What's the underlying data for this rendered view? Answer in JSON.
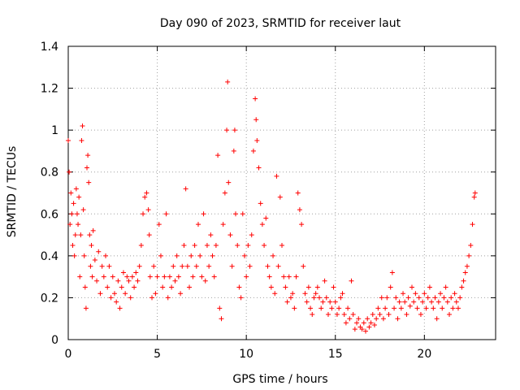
{
  "chart_data": {
    "type": "scatter",
    "title": "Day 090 of 2023, SRMTID for receiver laut",
    "xlabel": "GPS time / hours",
    "ylabel": "SRMTID / TECUs",
    "xlim": [
      0,
      24
    ],
    "ylim": [
      0,
      1.4
    ],
    "xticks": [
      0,
      5,
      10,
      15,
      20
    ],
    "xtick_labels": [
      "0",
      "5",
      "10",
      "15",
      "20"
    ],
    "yticks": [
      0,
      0.2,
      0.4,
      0.6,
      0.8,
      1.0,
      1.2,
      1.4
    ],
    "ytick_labels": [
      "0",
      "0.2",
      "0.4",
      "0.6",
      "0.8",
      "1",
      "1.2",
      "1.4"
    ],
    "grid": true,
    "marker": "+",
    "series": [
      {
        "name": "SRMTID",
        "color": "#ff0000",
        "points": [
          [
            0.0,
            0.95
          ],
          [
            0.05,
            0.8
          ],
          [
            0.1,
            0.55
          ],
          [
            0.15,
            0.7
          ],
          [
            0.2,
            0.6
          ],
          [
            0.25,
            0.45
          ],
          [
            0.3,
            0.65
          ],
          [
            0.35,
            0.4
          ],
          [
            0.4,
            0.5
          ],
          [
            0.45,
            0.72
          ],
          [
            0.5,
            0.6
          ],
          [
            0.55,
            0.55
          ],
          [
            0.6,
            0.68
          ],
          [
            0.65,
            0.3
          ],
          [
            0.7,
            0.5
          ],
          [
            0.75,
            0.95
          ],
          [
            0.8,
            1.02
          ],
          [
            0.85,
            0.62
          ],
          [
            0.9,
            0.4
          ],
          [
            0.95,
            0.25
          ],
          [
            1.0,
            0.15
          ],
          [
            1.05,
            0.82
          ],
          [
            1.1,
            0.88
          ],
          [
            1.15,
            0.75
          ],
          [
            1.2,
            0.5
          ],
          [
            1.25,
            0.35
          ],
          [
            1.3,
            0.45
          ],
          [
            1.35,
            0.3
          ],
          [
            1.4,
            0.52
          ],
          [
            1.5,
            0.38
          ],
          [
            1.6,
            0.28
          ],
          [
            1.7,
            0.42
          ],
          [
            1.8,
            0.22
          ],
          [
            1.9,
            0.35
          ],
          [
            2.0,
            0.3
          ],
          [
            2.1,
            0.4
          ],
          [
            2.2,
            0.25
          ],
          [
            2.3,
            0.35
          ],
          [
            2.4,
            0.2
          ],
          [
            2.5,
            0.3
          ],
          [
            2.6,
            0.22
          ],
          [
            2.7,
            0.18
          ],
          [
            2.8,
            0.28
          ],
          [
            2.9,
            0.15
          ],
          [
            3.0,
            0.25
          ],
          [
            3.1,
            0.32
          ],
          [
            3.2,
            0.22
          ],
          [
            3.3,
            0.3
          ],
          [
            3.4,
            0.28
          ],
          [
            3.5,
            0.2
          ],
          [
            3.6,
            0.3
          ],
          [
            3.7,
            0.25
          ],
          [
            3.8,
            0.32
          ],
          [
            3.9,
            0.28
          ],
          [
            4.0,
            0.35
          ],
          [
            4.1,
            0.45
          ],
          [
            4.2,
            0.6
          ],
          [
            4.3,
            0.68
          ],
          [
            4.4,
            0.7
          ],
          [
            4.5,
            0.62
          ],
          [
            4.55,
            0.5
          ],
          [
            4.6,
            0.3
          ],
          [
            4.7,
            0.2
          ],
          [
            4.8,
            0.35
          ],
          [
            4.9,
            0.22
          ],
          [
            5.0,
            0.3
          ],
          [
            5.1,
            0.55
          ],
          [
            5.2,
            0.4
          ],
          [
            5.3,
            0.25
          ],
          [
            5.4,
            0.3
          ],
          [
            5.5,
            0.6
          ],
          [
            5.6,
            0.2
          ],
          [
            5.7,
            0.3
          ],
          [
            5.8,
            0.25
          ],
          [
            5.9,
            0.35
          ],
          [
            6.0,
            0.28
          ],
          [
            6.1,
            0.4
          ],
          [
            6.2,
            0.3
          ],
          [
            6.3,
            0.22
          ],
          [
            6.4,
            0.35
          ],
          [
            6.5,
            0.45
          ],
          [
            6.6,
            0.72
          ],
          [
            6.7,
            0.35
          ],
          [
            6.8,
            0.25
          ],
          [
            6.9,
            0.4
          ],
          [
            7.0,
            0.3
          ],
          [
            7.1,
            0.45
          ],
          [
            7.2,
            0.35
          ],
          [
            7.3,
            0.55
          ],
          [
            7.4,
            0.4
          ],
          [
            7.5,
            0.3
          ],
          [
            7.6,
            0.6
          ],
          [
            7.7,
            0.28
          ],
          [
            7.8,
            0.45
          ],
          [
            7.9,
            0.35
          ],
          [
            8.0,
            0.5
          ],
          [
            8.1,
            0.4
          ],
          [
            8.2,
            0.3
          ],
          [
            8.3,
            0.45
          ],
          [
            8.4,
            0.88
          ],
          [
            8.5,
            0.15
          ],
          [
            8.6,
            0.1
          ],
          [
            8.7,
            0.55
          ],
          [
            8.8,
            0.7
          ],
          [
            8.9,
            1.0
          ],
          [
            8.95,
            1.23
          ],
          [
            9.0,
            0.75
          ],
          [
            9.1,
            0.5
          ],
          [
            9.2,
            0.35
          ],
          [
            9.3,
            0.9
          ],
          [
            9.35,
            1.0
          ],
          [
            9.4,
            0.6
          ],
          [
            9.5,
            0.45
          ],
          [
            9.6,
            0.25
          ],
          [
            9.7,
            0.2
          ],
          [
            9.8,
            0.6
          ],
          [
            9.9,
            0.4
          ],
          [
            10.0,
            0.3
          ],
          [
            10.1,
            0.45
          ],
          [
            10.2,
            0.35
          ],
          [
            10.3,
            0.5
          ],
          [
            10.4,
            0.9
          ],
          [
            10.5,
            1.15
          ],
          [
            10.55,
            1.05
          ],
          [
            10.6,
            0.95
          ],
          [
            10.7,
            0.82
          ],
          [
            10.8,
            0.65
          ],
          [
            10.9,
            0.55
          ],
          [
            11.0,
            0.45
          ],
          [
            11.1,
            0.58
          ],
          [
            11.2,
            0.35
          ],
          [
            11.3,
            0.3
          ],
          [
            11.4,
            0.25
          ],
          [
            11.5,
            0.4
          ],
          [
            11.6,
            0.22
          ],
          [
            11.7,
            0.78
          ],
          [
            11.8,
            0.35
          ],
          [
            11.9,
            0.68
          ],
          [
            12.0,
            0.45
          ],
          [
            12.1,
            0.3
          ],
          [
            12.2,
            0.25
          ],
          [
            12.3,
            0.18
          ],
          [
            12.4,
            0.3
          ],
          [
            12.5,
            0.2
          ],
          [
            12.6,
            0.22
          ],
          [
            12.7,
            0.15
          ],
          [
            12.8,
            0.3
          ],
          [
            12.9,
            0.7
          ],
          [
            13.0,
            0.62
          ],
          [
            13.1,
            0.55
          ],
          [
            13.2,
            0.35
          ],
          [
            13.3,
            0.22
          ],
          [
            13.4,
            0.18
          ],
          [
            13.5,
            0.25
          ],
          [
            13.6,
            0.15
          ],
          [
            13.7,
            0.12
          ],
          [
            13.8,
            0.2
          ],
          [
            13.9,
            0.22
          ],
          [
            14.0,
            0.25
          ],
          [
            14.1,
            0.2
          ],
          [
            14.2,
            0.15
          ],
          [
            14.3,
            0.18
          ],
          [
            14.4,
            0.28
          ],
          [
            14.5,
            0.2
          ],
          [
            14.6,
            0.12
          ],
          [
            14.7,
            0.18
          ],
          [
            14.8,
            0.15
          ],
          [
            14.9,
            0.25
          ],
          [
            15.0,
            0.18
          ],
          [
            15.1,
            0.12
          ],
          [
            15.2,
            0.15
          ],
          [
            15.3,
            0.2
          ],
          [
            15.4,
            0.22
          ],
          [
            15.5,
            0.12
          ],
          [
            15.6,
            0.08
          ],
          [
            15.7,
            0.15
          ],
          [
            15.8,
            0.1
          ],
          [
            15.9,
            0.28
          ],
          [
            16.0,
            0.12
          ],
          [
            16.1,
            0.05
          ],
          [
            16.2,
            0.08
          ],
          [
            16.3,
            0.1
          ],
          [
            16.4,
            0.06
          ],
          [
            16.5,
            0.05
          ],
          [
            16.6,
            0.08
          ],
          [
            16.7,
            0.04
          ],
          [
            16.8,
            0.1
          ],
          [
            16.9,
            0.06
          ],
          [
            17.0,
            0.08
          ],
          [
            17.1,
            0.12
          ],
          [
            17.2,
            0.07
          ],
          [
            17.3,
            0.1
          ],
          [
            17.4,
            0.15
          ],
          [
            17.5,
            0.12
          ],
          [
            17.6,
            0.2
          ],
          [
            17.7,
            0.1
          ],
          [
            17.8,
            0.15
          ],
          [
            17.9,
            0.2
          ],
          [
            18.0,
            0.12
          ],
          [
            18.1,
            0.25
          ],
          [
            18.2,
            0.32
          ],
          [
            18.3,
            0.15
          ],
          [
            18.4,
            0.2
          ],
          [
            18.5,
            0.1
          ],
          [
            18.6,
            0.18
          ],
          [
            18.7,
            0.15
          ],
          [
            18.8,
            0.22
          ],
          [
            18.9,
            0.18
          ],
          [
            19.0,
            0.12
          ],
          [
            19.1,
            0.2
          ],
          [
            19.2,
            0.16
          ],
          [
            19.3,
            0.25
          ],
          [
            19.4,
            0.18
          ],
          [
            19.5,
            0.22
          ],
          [
            19.6,
            0.15
          ],
          [
            19.7,
            0.2
          ],
          [
            19.8,
            0.12
          ],
          [
            19.9,
            0.18
          ],
          [
            20.0,
            0.22
          ],
          [
            20.1,
            0.15
          ],
          [
            20.2,
            0.2
          ],
          [
            20.3,
            0.25
          ],
          [
            20.4,
            0.18
          ],
          [
            20.5,
            0.15
          ],
          [
            20.6,
            0.2
          ],
          [
            20.7,
            0.1
          ],
          [
            20.8,
            0.18
          ],
          [
            20.9,
            0.22
          ],
          [
            21.0,
            0.15
          ],
          [
            21.1,
            0.2
          ],
          [
            21.2,
            0.25
          ],
          [
            21.3,
            0.18
          ],
          [
            21.4,
            0.12
          ],
          [
            21.5,
            0.2
          ],
          [
            21.6,
            0.15
          ],
          [
            21.7,
            0.22
          ],
          [
            21.8,
            0.18
          ],
          [
            21.9,
            0.15
          ],
          [
            22.0,
            0.2
          ],
          [
            22.1,
            0.25
          ],
          [
            22.2,
            0.28
          ],
          [
            22.3,
            0.32
          ],
          [
            22.4,
            0.35
          ],
          [
            22.5,
            0.4
          ],
          [
            22.6,
            0.45
          ],
          [
            22.7,
            0.55
          ],
          [
            22.8,
            0.68
          ],
          [
            22.85,
            0.7
          ]
        ]
      }
    ]
  }
}
